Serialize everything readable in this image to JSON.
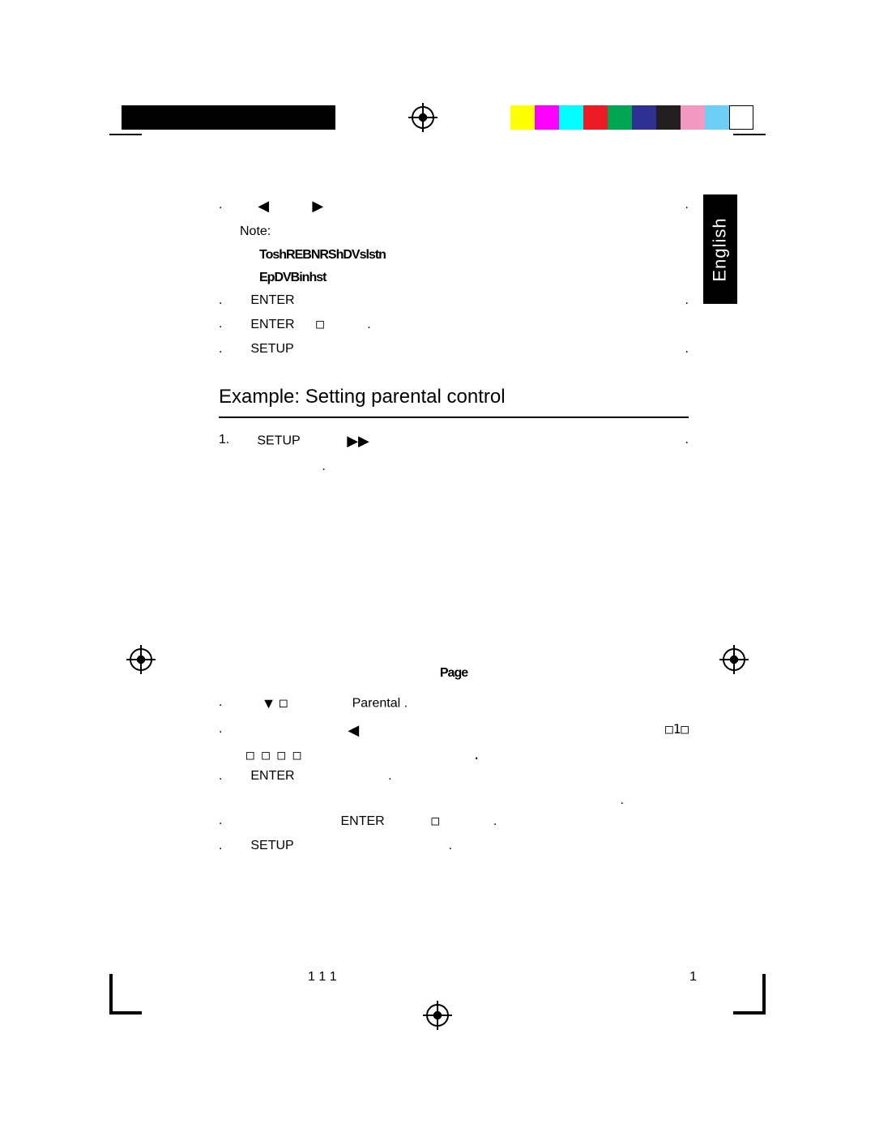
{
  "colorBar": [
    "#ffff00",
    "#ff00ff",
    "#00ffff",
    "#ed1c24",
    "#00a651",
    "#2e3192",
    "#231f20",
    "#f49ac1",
    "#6dcff6",
    "#ffffff"
  ],
  "langTab": "English",
  "topBlock": {
    "line1_left": ".",
    "arrow_left": "◀",
    "arrow_right": "▶",
    "line1_right": ".",
    "note_label": "Note:",
    "garbled1": "ToshREBNRShDVslstn",
    "garbled2": "EpDVBinhst",
    "steps": [
      {
        "dot": ".",
        "label": "ENTER",
        "trail": "."
      },
      {
        "dot": ".",
        "label": "ENTER",
        "mid": "□",
        "trail": "."
      },
      {
        "dot": ".",
        "label": "SETUP",
        "trail": "."
      }
    ]
  },
  "heading": "Example: Setting parental control",
  "steps": [
    {
      "num": "1.",
      "label": "SETUP",
      "arrow": "▶▶",
      "trail": ".",
      "sub": "."
    },
    {
      "num": "",
      "pageLabel": "Page"
    },
    {
      "dot": ".",
      "arrow": "▼",
      "sq": "□",
      "text": "Parental ."
    },
    {
      "dot": ".",
      "arrow": "◀",
      "trail": "□1□",
      "sub": "□ □      □ □",
      "subtrail": "."
    },
    {
      "dot": ".",
      "label": "ENTER",
      "trail": ".",
      "sub": "."
    },
    {
      "dot": ".",
      "midlabel": "ENTER",
      "sq": "□",
      "trail": "."
    },
    {
      "dot": ".",
      "label": "SETUP",
      "trail": "."
    }
  ],
  "footer": {
    "leftNums": "1          1          1",
    "rightNum": "1"
  }
}
